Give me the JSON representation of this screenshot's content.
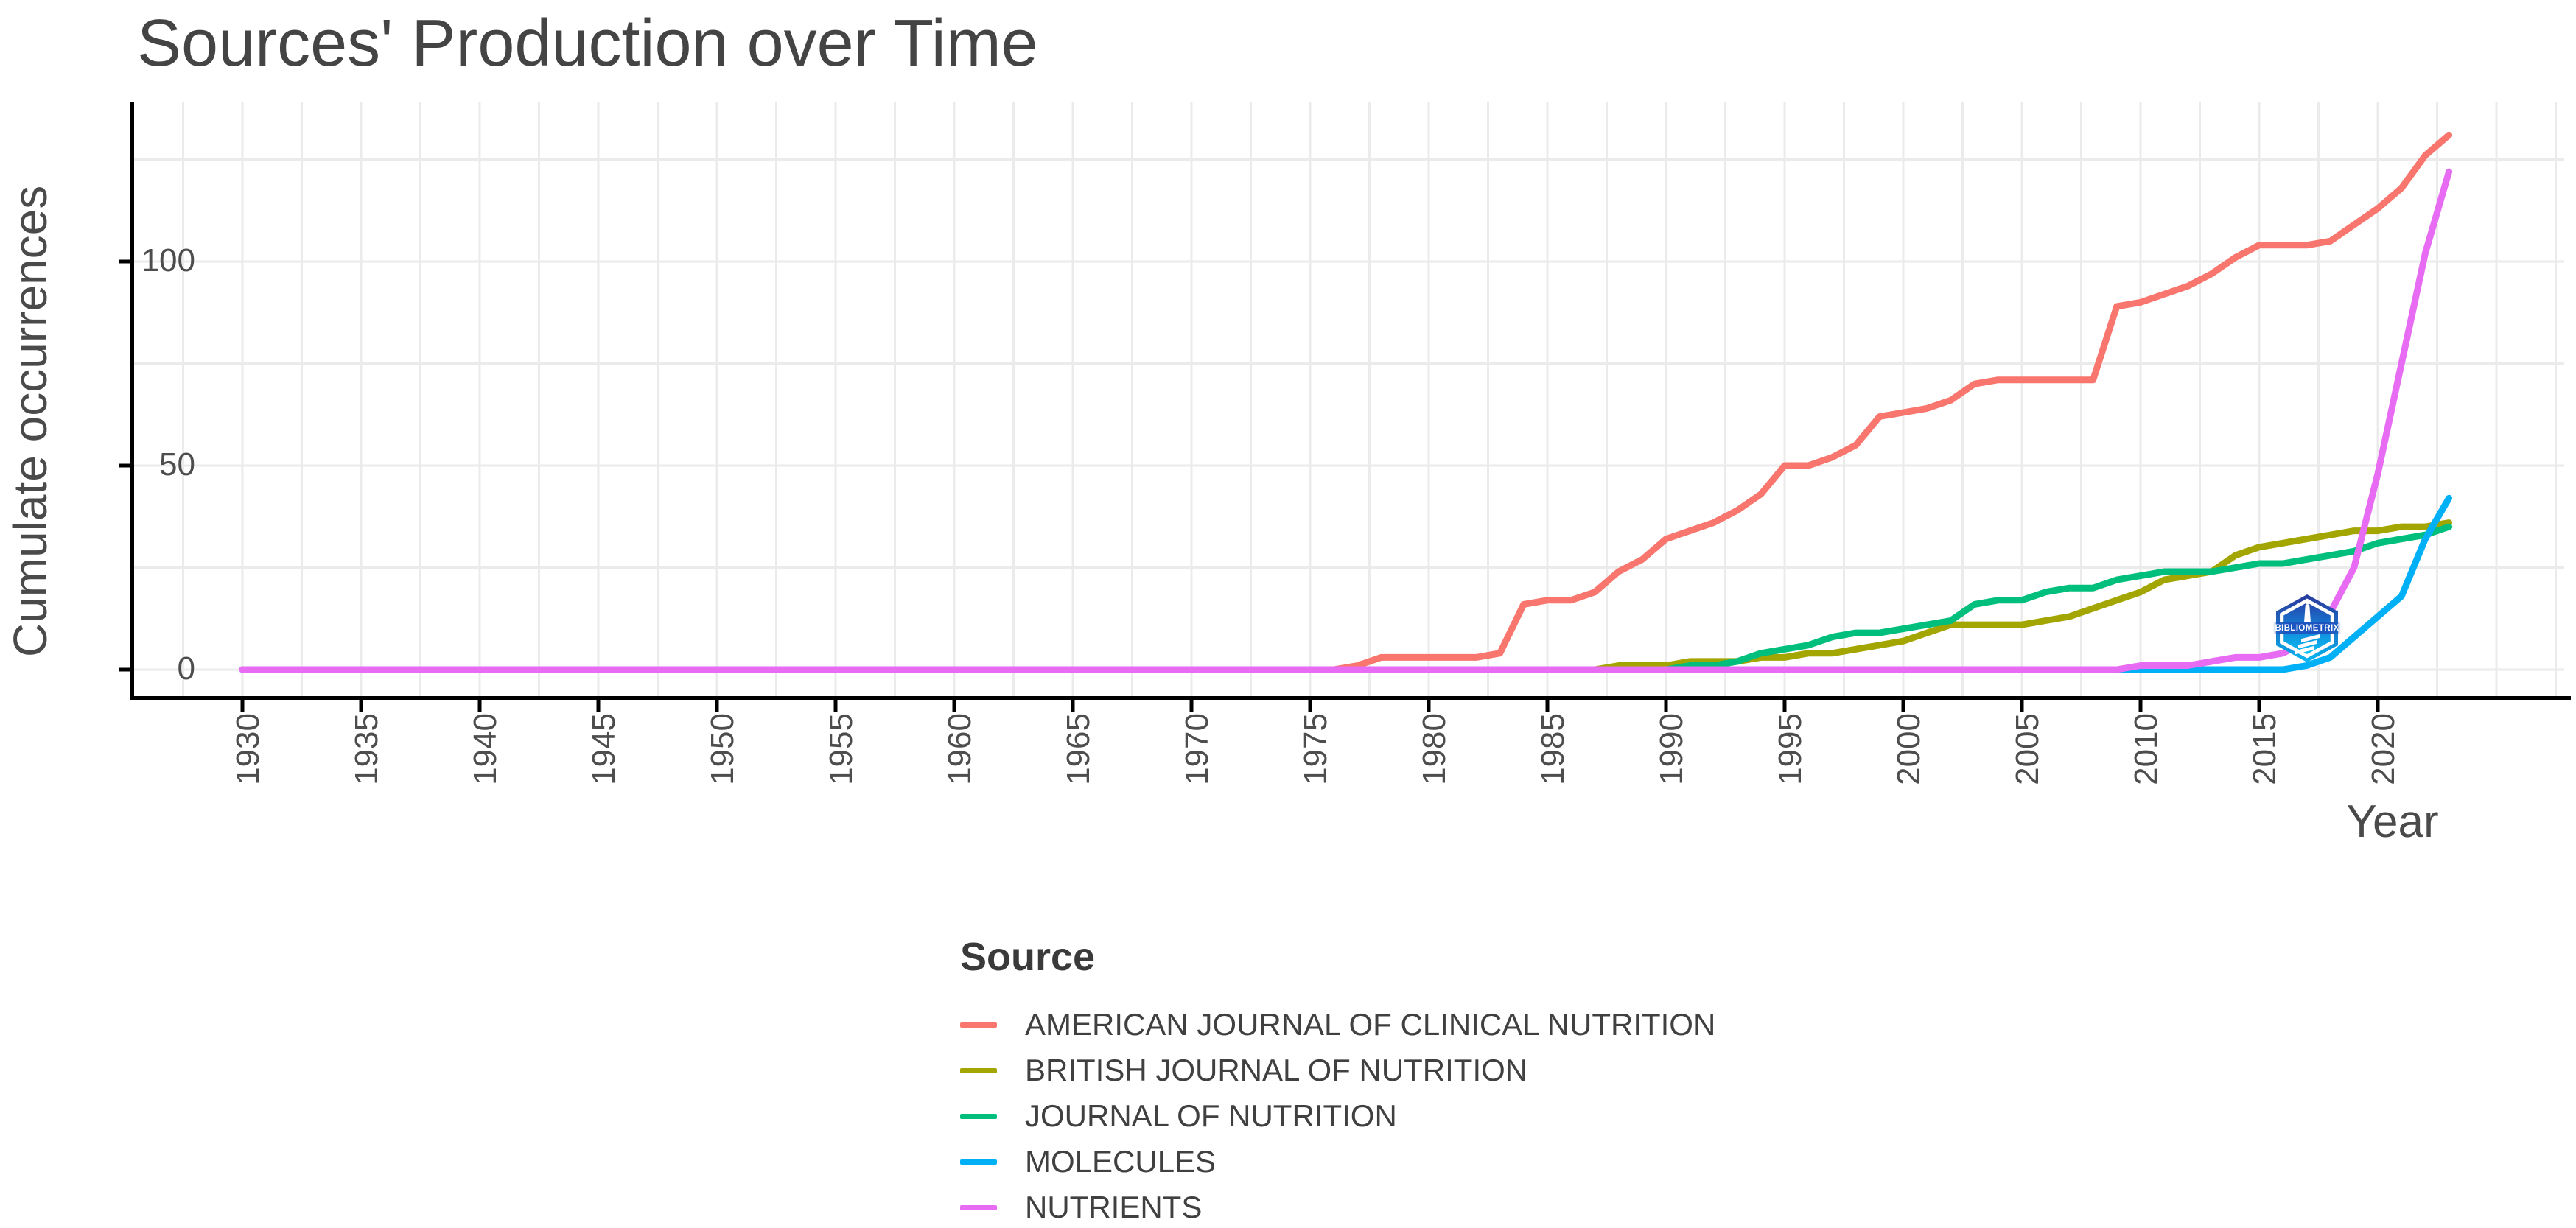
{
  "chart": {
    "title": "Sources' Production over Time",
    "x_axis": {
      "label": "Year"
    },
    "y_axis": {
      "label": "Cumulate occurrences"
    },
    "legend": {
      "title": "Source"
    }
  },
  "watermark": {
    "text": "BIBLIOMETRIX"
  },
  "colors": {
    "axis_line": "#000000",
    "grid": "#EBEBEB",
    "title_text": "#444444",
    "axis_text": "#4D4D4D",
    "legend_text": "#404040"
  },
  "chart_data": {
    "type": "line",
    "title": "Sources' Production over Time",
    "xlabel": "Year",
    "ylabel": "Cumulate occurrences",
    "xlim": [
      1925.4,
      2027.9
    ],
    "ylim": [
      -6.5,
      139
    ],
    "x_major_ticks": [
      1930,
      1935,
      1940,
      1945,
      1950,
      1955,
      1960,
      1965,
      1970,
      1975,
      1980,
      1985,
      1990,
      1995,
      2000,
      2005,
      2010,
      2015,
      2020
    ],
    "y_major_ticks": [
      0,
      50,
      100
    ],
    "x_minor_step": 2.5,
    "y_minor_step": 25,
    "grid": "major and minor gridlines on, light gray, white background, black axis lines",
    "legend_position": "bottom-center",
    "series": [
      {
        "name": "AMERICAN JOURNAL OF CLINICAL NUTRITION",
        "color": "#F8766D",
        "points": [
          [
            1930,
            0
          ],
          [
            1976,
            0
          ],
          [
            1977,
            1
          ],
          [
            1978,
            3
          ],
          [
            1981,
            3
          ],
          [
            1982,
            3
          ],
          [
            1983,
            4
          ],
          [
            1984,
            16
          ],
          [
            1985,
            17
          ],
          [
            1986,
            17
          ],
          [
            1987,
            19
          ],
          [
            1988,
            24
          ],
          [
            1989,
            27
          ],
          [
            1990,
            32
          ],
          [
            1991,
            34
          ],
          [
            1992,
            36
          ],
          [
            1993,
            39
          ],
          [
            1994,
            43
          ],
          [
            1995,
            50
          ],
          [
            1996,
            50
          ],
          [
            1997,
            52
          ],
          [
            1998,
            55
          ],
          [
            1999,
            62
          ],
          [
            2000,
            63
          ],
          [
            2001,
            64
          ],
          [
            2002,
            66
          ],
          [
            2003,
            70
          ],
          [
            2004,
            71
          ],
          [
            2008,
            71
          ],
          [
            2009,
            89
          ],
          [
            2010,
            90
          ],
          [
            2011,
            92
          ],
          [
            2012,
            94
          ],
          [
            2013,
            97
          ],
          [
            2014,
            101
          ],
          [
            2015,
            104
          ],
          [
            2017,
            104
          ],
          [
            2018,
            105
          ],
          [
            2019,
            109
          ],
          [
            2020,
            113
          ],
          [
            2021,
            118
          ],
          [
            2022,
            126
          ],
          [
            2023,
            131
          ]
        ]
      },
      {
        "name": "BRITISH JOURNAL OF NUTRITION",
        "color": "#A3A500",
        "points": [
          [
            1930,
            0
          ],
          [
            1987,
            0
          ],
          [
            1988,
            1
          ],
          [
            1990,
            1
          ],
          [
            1991,
            2
          ],
          [
            1993,
            2
          ],
          [
            1994,
            3
          ],
          [
            1995,
            3
          ],
          [
            1996,
            4
          ],
          [
            1997,
            4
          ],
          [
            1998,
            5
          ],
          [
            1999,
            6
          ],
          [
            2000,
            7
          ],
          [
            2001,
            9
          ],
          [
            2002,
            11
          ],
          [
            2005,
            11
          ],
          [
            2006,
            12
          ],
          [
            2007,
            13
          ],
          [
            2008,
            15
          ],
          [
            2009,
            17
          ],
          [
            2010,
            19
          ],
          [
            2011,
            22
          ],
          [
            2012,
            23
          ],
          [
            2013,
            24
          ],
          [
            2014,
            28
          ],
          [
            2015,
            30
          ],
          [
            2016,
            31
          ],
          [
            2017,
            32
          ],
          [
            2018,
            33
          ],
          [
            2019,
            34
          ],
          [
            2020,
            34
          ],
          [
            2021,
            35
          ],
          [
            2022,
            35
          ],
          [
            2023,
            36
          ]
        ]
      },
      {
        "name": "JOURNAL OF NUTRITION",
        "color": "#00BF7D",
        "points": [
          [
            1930,
            0
          ],
          [
            1990,
            0
          ],
          [
            1991,
            1
          ],
          [
            1992,
            1
          ],
          [
            1993,
            2
          ],
          [
            1994,
            4
          ],
          [
            1995,
            5
          ],
          [
            1996,
            6
          ],
          [
            1997,
            8
          ],
          [
            1998,
            9
          ],
          [
            1999,
            9
          ],
          [
            2000,
            10
          ],
          [
            2001,
            11
          ],
          [
            2002,
            12
          ],
          [
            2003,
            16
          ],
          [
            2004,
            17
          ],
          [
            2005,
            17
          ],
          [
            2006,
            19
          ],
          [
            2007,
            20
          ],
          [
            2008,
            20
          ],
          [
            2009,
            22
          ],
          [
            2010,
            23
          ],
          [
            2011,
            24
          ],
          [
            2013,
            24
          ],
          [
            2014,
            25
          ],
          [
            2015,
            26
          ],
          [
            2016,
            26
          ],
          [
            2017,
            27
          ],
          [
            2018,
            28
          ],
          [
            2019,
            29
          ],
          [
            2020,
            31
          ],
          [
            2021,
            32
          ],
          [
            2022,
            33
          ],
          [
            2023,
            35
          ]
        ]
      },
      {
        "name": "MOLECULES",
        "color": "#00B0F6",
        "points": [
          [
            1930,
            0
          ],
          [
            2016,
            0
          ],
          [
            2017,
            1
          ],
          [
            2018,
            3
          ],
          [
            2019,
            8
          ],
          [
            2020,
            13
          ],
          [
            2021,
            18
          ],
          [
            2022,
            32
          ],
          [
            2023,
            42
          ]
        ]
      },
      {
        "name": "NUTRIENTS",
        "color": "#E76BF3",
        "points": [
          [
            1930,
            0
          ],
          [
            2009,
            0
          ],
          [
            2010,
            1
          ],
          [
            2012,
            1
          ],
          [
            2013,
            2
          ],
          [
            2014,
            3
          ],
          [
            2015,
            3
          ],
          [
            2016,
            4
          ],
          [
            2017,
            7
          ],
          [
            2018,
            14
          ],
          [
            2019,
            25
          ],
          [
            2020,
            48
          ],
          [
            2021,
            75
          ],
          [
            2022,
            102
          ],
          [
            2023,
            122
          ]
        ]
      }
    ]
  }
}
